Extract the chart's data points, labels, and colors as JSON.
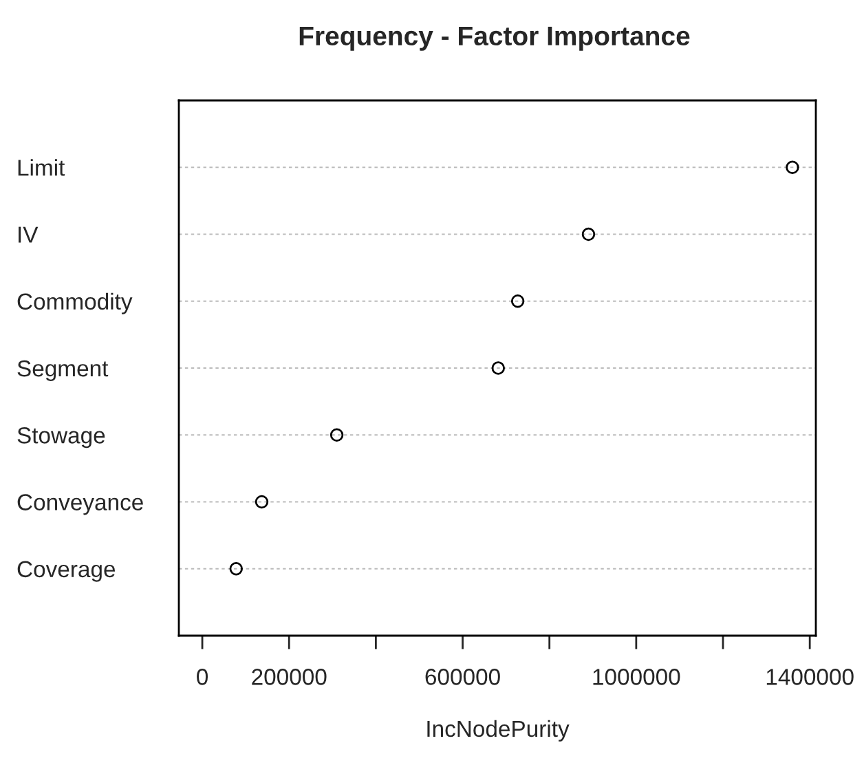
{
  "chart_data": {
    "type": "scatter",
    "title": "Frequency - Factor Importance",
    "xlabel": "IncNodePurity",
    "orientation": "horizontal",
    "categories": [
      "Limit",
      "IV",
      "Commodity",
      "Segment",
      "Stowage",
      "Conveyance",
      "Coverage"
    ],
    "values": [
      1360000,
      890000,
      727000,
      682000,
      310000,
      137000,
      78000
    ],
    "color": "#000000",
    "marker": "circle",
    "grid": "y",
    "xlim": [
      -54000,
      1414000
    ],
    "xticks": [
      0,
      200000,
      {
        "value": 400000,
        "label": null
      },
      600000,
      {
        "value": 800000,
        "label": null
      },
      1000000,
      {
        "value": 1200000,
        "label": null
      },
      1400000
    ]
  }
}
